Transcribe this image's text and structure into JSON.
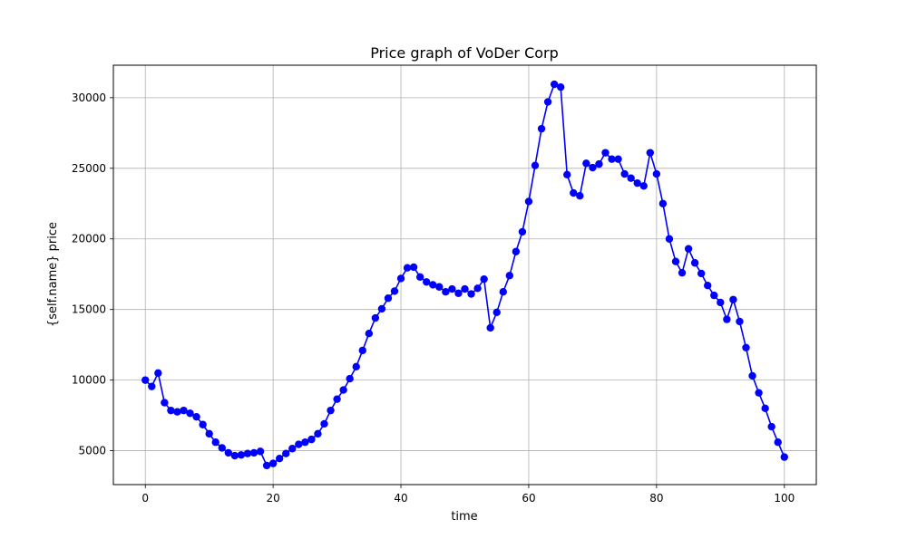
{
  "chart_data": {
    "type": "line",
    "title": "Price graph of VoDer Corp",
    "xlabel": "time",
    "ylabel": "{self.name} price",
    "xlim": [
      -5,
      105
    ],
    "ylim": [
      2600,
      32300
    ],
    "xticks": [
      0,
      20,
      40,
      60,
      80,
      100
    ],
    "yticks": [
      5000,
      10000,
      15000,
      20000,
      25000,
      30000
    ],
    "grid": true,
    "marker": "circle",
    "series": [
      {
        "color": "#0000ff",
        "x": [
          0,
          1,
          2,
          3,
          4,
          5,
          6,
          7,
          8,
          9,
          10,
          11,
          12,
          13,
          14,
          15,
          16,
          17,
          18,
          19,
          20,
          21,
          22,
          23,
          24,
          25,
          26,
          27,
          28,
          29,
          30,
          31,
          32,
          33,
          34,
          35,
          36,
          37,
          38,
          39,
          40,
          41,
          42,
          43,
          44,
          45,
          46,
          47,
          48,
          49,
          50,
          51,
          52,
          53,
          54,
          55,
          56,
          57,
          58,
          59,
          60,
          61,
          62,
          63,
          64,
          65,
          66,
          67,
          68,
          69,
          70,
          71,
          72,
          73,
          74,
          75,
          76,
          77,
          78,
          79,
          80,
          81,
          82,
          83,
          84,
          85,
          86,
          87,
          88,
          89,
          90,
          91,
          92,
          93,
          94,
          95,
          96,
          97,
          98,
          99,
          100
        ],
        "y": [
          10000,
          9550,
          10500,
          8400,
          7850,
          7750,
          7850,
          7650,
          7400,
          6850,
          6200,
          5600,
          5200,
          4850,
          4650,
          4700,
          4800,
          4850,
          4950,
          3950,
          4100,
          4450,
          4800,
          5150,
          5450,
          5600,
          5800,
          6200,
          6900,
          7850,
          8650,
          9300,
          10100,
          10950,
          12100,
          13300,
          14400,
          15050,
          15800,
          16300,
          17200,
          17950,
          18000,
          17300,
          16950,
          16750,
          16600,
          16250,
          16450,
          16150,
          16450,
          16100,
          16500,
          17150,
          13700,
          14800,
          16250,
          17400,
          19100,
          20500,
          22650,
          25200,
          27800,
          29700,
          30950,
          30750,
          24550,
          23250,
          23050,
          25350,
          25050,
          25300,
          26100,
          25650,
          25650,
          24600,
          24300,
          23950,
          23750,
          26100,
          24600,
          22500,
          20000,
          18400,
          17600,
          19300,
          18300,
          17550,
          16700,
          16000,
          15500,
          14300,
          15700,
          14150,
          12300,
          10300,
          9100,
          8000,
          6700,
          5600,
          4550
        ]
      }
    ]
  }
}
